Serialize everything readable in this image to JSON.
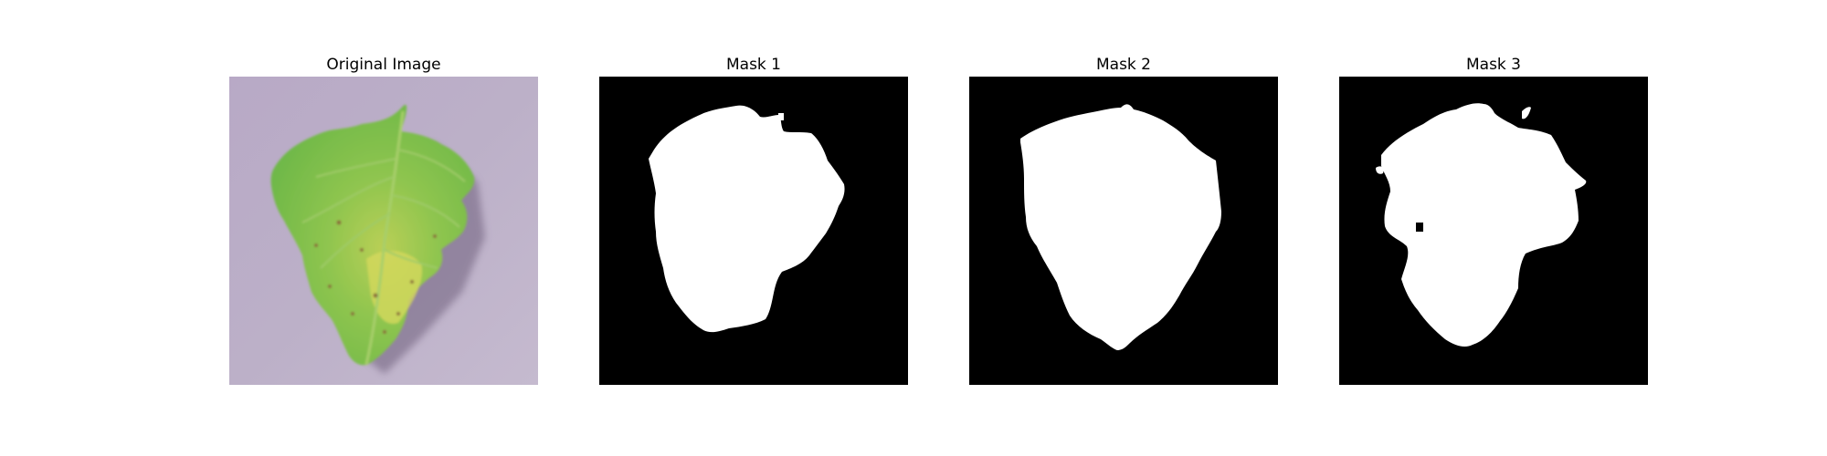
{
  "panels": [
    {
      "title": "Original Image",
      "content": "leaf-photo"
    },
    {
      "title": "Mask 1",
      "content": "binary-mask"
    },
    {
      "title": "Mask 2",
      "content": "binary-mask"
    },
    {
      "title": "Mask 3",
      "content": "binary-mask"
    }
  ],
  "colors": {
    "background": "#ffffff",
    "mask_background": "#000000",
    "mask_foreground": "#ffffff",
    "photo_background": "#b7a9c4",
    "leaf_green": "#7cc24f",
    "leaf_yellow": "#cbd65a"
  }
}
